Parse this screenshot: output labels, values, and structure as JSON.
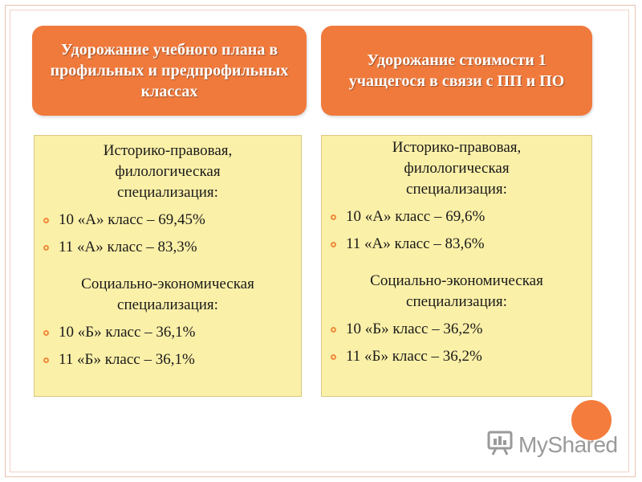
{
  "headers": [
    {
      "text": "Удорожание учебного плана в профильных и предпрофильных классах"
    },
    {
      "text": "Удорожание стоимости 1 учащегося в связи с ПП и ПО"
    }
  ],
  "panels": [
    {
      "section1_title": "Историко-правовая, филологическая специализация:",
      "section1_items": [
        "10 «А» класс – 69,45%",
        "11 «А» класс – 83,3%"
      ],
      "section2_title": "Социально-экономическая специализация:",
      "section2_items": [
        "10 «Б» класс – 36,1%",
        "11 «Б» класс – 36,1%"
      ]
    },
    {
      "section1_title": "Историко-правовая, филологическая специализация:",
      "section1_items": [
        "10 «А» класс – 69,6%",
        "11 «А» класс – 83,6%"
      ],
      "section2_title": "Социально-экономическая специализация:",
      "section2_items": [
        "10 «Б» класс – 36,2%",
        "11 «Б» класс – 36,2%"
      ]
    }
  ],
  "watermark": {
    "text": "MyShared",
    "icon": "presentation-board-icon"
  },
  "colors": {
    "header_bg": "#f07a3c",
    "panel_bg": "#fbf0a8",
    "bullet": "#f08a3c",
    "accent_circle": "#f47c3c"
  }
}
